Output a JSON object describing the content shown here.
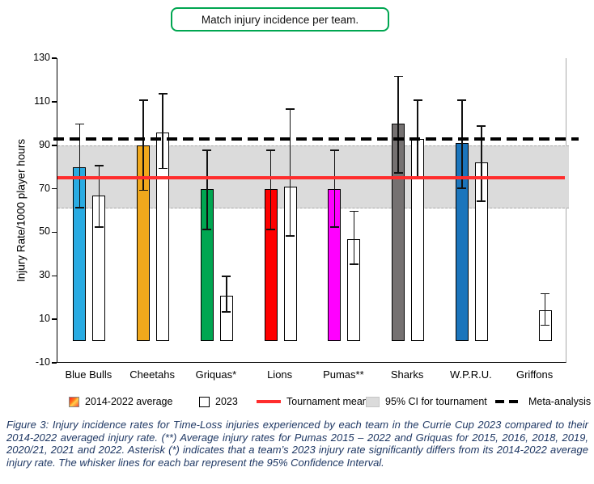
{
  "title": "Match injury incidence per team.",
  "chart_data": {
    "type": "bar",
    "title": "Match injury incidence per team.",
    "xlabel": "",
    "ylabel": "Injury Rate/1000 player hours",
    "ylim": [
      -10,
      130
    ],
    "yticks": [
      -10,
      10,
      30,
      50,
      70,
      90,
      110,
      130
    ],
    "grid": false,
    "legend_position": "bottom",
    "categories": [
      "Blue Bulls",
      "Cheetahs",
      "Griquas*",
      "Lions",
      "Pumas**",
      "Sharks",
      "W.P.R.U.",
      "Griffons"
    ],
    "bar_colors": [
      "#29ABE2",
      "#F0A81C",
      "#00A651",
      "#FE0000",
      "#FF00FF",
      "#757171",
      "#1B75BC",
      null
    ],
    "series": [
      {
        "name": "2014-2022 average",
        "values": [
          80,
          90,
          70,
          70,
          70,
          100,
          91,
          null
        ],
        "ci_low": [
          61,
          69,
          51,
          51,
          52,
          77,
          70,
          null
        ],
        "ci_high": [
          100,
          111,
          88,
          88,
          88,
          122,
          111,
          null
        ]
      },
      {
        "name": "2023",
        "values": [
          67,
          96,
          21,
          71,
          47,
          93,
          82,
          14
        ],
        "ci_low": [
          52,
          79,
          13,
          48,
          35,
          75,
          64,
          7
        ],
        "ci_high": [
          81,
          114,
          30,
          107,
          60,
          111,
          99,
          22
        ]
      }
    ],
    "reference_lines": [
      {
        "name": "Tournament mean",
        "value": 75,
        "color": "#FF2D2D",
        "style": "solid"
      },
      {
        "name": "Meta-analysis",
        "value": 93,
        "color": "#000000",
        "style": "dashed"
      }
    ],
    "reference_band": {
      "name": "95% CI for tournament",
      "low": 61,
      "high": 90,
      "color": "#DBDBDB"
    }
  },
  "legend": {
    "items": [
      {
        "label": "2014-2022 average",
        "swatch": "gradient-box"
      },
      {
        "label": "2023",
        "swatch": "white-box"
      },
      {
        "label": "Tournament mean",
        "swatch": "red-line"
      },
      {
        "label": "95% CI for tournament",
        "swatch": "gray-box"
      },
      {
        "label": "Meta-analysis",
        "swatch": "dashed-line"
      }
    ]
  },
  "caption": "Figure 3: Injury incidence rates for Time-Loss injuries experienced by each team in the Currie Cup 2023 compared to their 2014-2022 averaged injury rate. (**) Average injury rates for Pumas 2015 – 2022 and Griquas for 2015, 2016, 2018, 2019, 2020/21, 2021 and 2022. Asterisk (*) indicates that a team’s 2023 injury rate significantly differs from its 2014-2022 average injury rate. The whisker lines for each bar represent the 95% Confidence Interval."
}
